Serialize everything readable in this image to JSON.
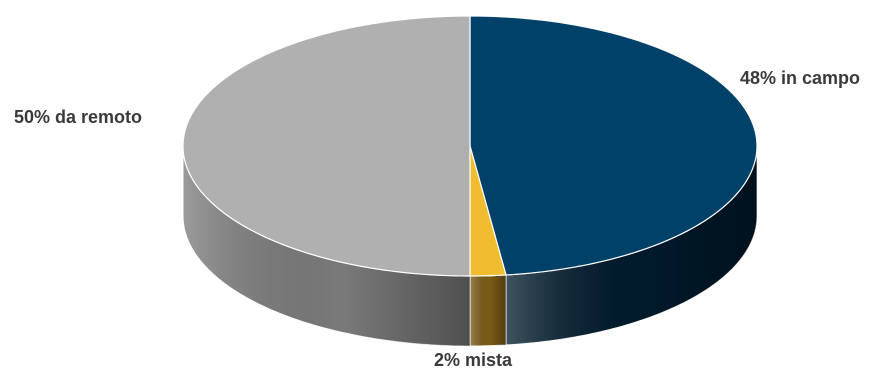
{
  "chart_data": {
    "type": "pie",
    "style": "3d",
    "title": "",
    "slices": [
      {
        "label": "48% in campo",
        "value": 48,
        "color": "#00416a",
        "side_color": "#001a2c"
      },
      {
        "label": "2% mista",
        "value": 2,
        "color": "#f0bd30",
        "side_color": "#7a5c16"
      },
      {
        "label": "50% da remoto",
        "value": 50,
        "color": "#b0b0b0",
        "side_color": "#7a7a7a"
      }
    ],
    "start_angle": "12 o'clock",
    "direction": "clockwise",
    "legend": "none"
  }
}
